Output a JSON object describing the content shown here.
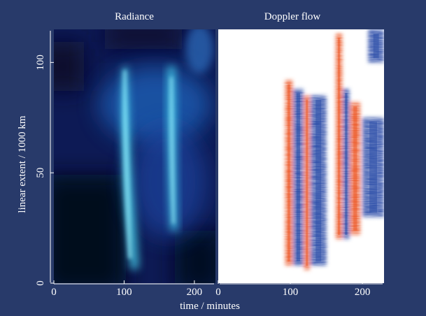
{
  "chart_data": [
    {
      "type": "heatmap",
      "title": "Radiance",
      "xlabel": "time / minutes",
      "ylabel": "linear extent / 1000 km",
      "xlim": [
        0,
        230
      ],
      "ylim": [
        0,
        115
      ],
      "xticks": [
        0,
        100,
        200
      ],
      "yticks": [
        0,
        50,
        100
      ],
      "colormap": {
        "low": "#050a1a",
        "mid": "#1f3fae",
        "high": "#46d2ee"
      },
      "features": [
        {
          "name": "bright streak",
          "x_start": 110,
          "x_end": 135,
          "y_start": 5,
          "y_end": 90
        },
        {
          "name": "bright streak",
          "x_start": 185,
          "x_end": 200,
          "y_start": 22,
          "y_end": 95
        },
        {
          "name": "diffuse glow",
          "x_start": 100,
          "x_end": 215,
          "y_start": 55,
          "y_end": 95
        }
      ]
    },
    {
      "type": "heatmap",
      "title": "Doppler flow",
      "xlabel": "time / minutes",
      "xlim": [
        0,
        230
      ],
      "ylim": [
        0,
        115
      ],
      "xticks": [
        0,
        100,
        200
      ],
      "colormap": {
        "negative": "#2c4ea8",
        "zero": "#ffffff",
        "positive": "#ec5c2e"
      },
      "bands": [
        {
          "sign": "positive",
          "x_start": 93,
          "x_end": 103,
          "y_start": 8,
          "y_end": 92
        },
        {
          "sign": "negative",
          "x_start": 104,
          "x_end": 118,
          "y_start": 8,
          "y_end": 88
        },
        {
          "sign": "positive",
          "x_start": 119,
          "x_end": 127,
          "y_start": 6,
          "y_end": 85
        },
        {
          "sign": "negative",
          "x_start": 128,
          "x_end": 150,
          "y_start": 8,
          "y_end": 85
        },
        {
          "sign": "positive",
          "x_start": 163,
          "x_end": 172,
          "y_start": 20,
          "y_end": 113
        },
        {
          "sign": "negative",
          "x_start": 173,
          "x_end": 182,
          "y_start": 20,
          "y_end": 88
        },
        {
          "sign": "positive",
          "x_start": 183,
          "x_end": 197,
          "y_start": 22,
          "y_end": 82
        },
        {
          "sign": "negative",
          "x_start": 200,
          "x_end": 230,
          "y_start": 30,
          "y_end": 75
        },
        {
          "sign": "negative",
          "x_start": 208,
          "x_end": 230,
          "y_start": 100,
          "y_end": 115
        }
      ]
    }
  ]
}
